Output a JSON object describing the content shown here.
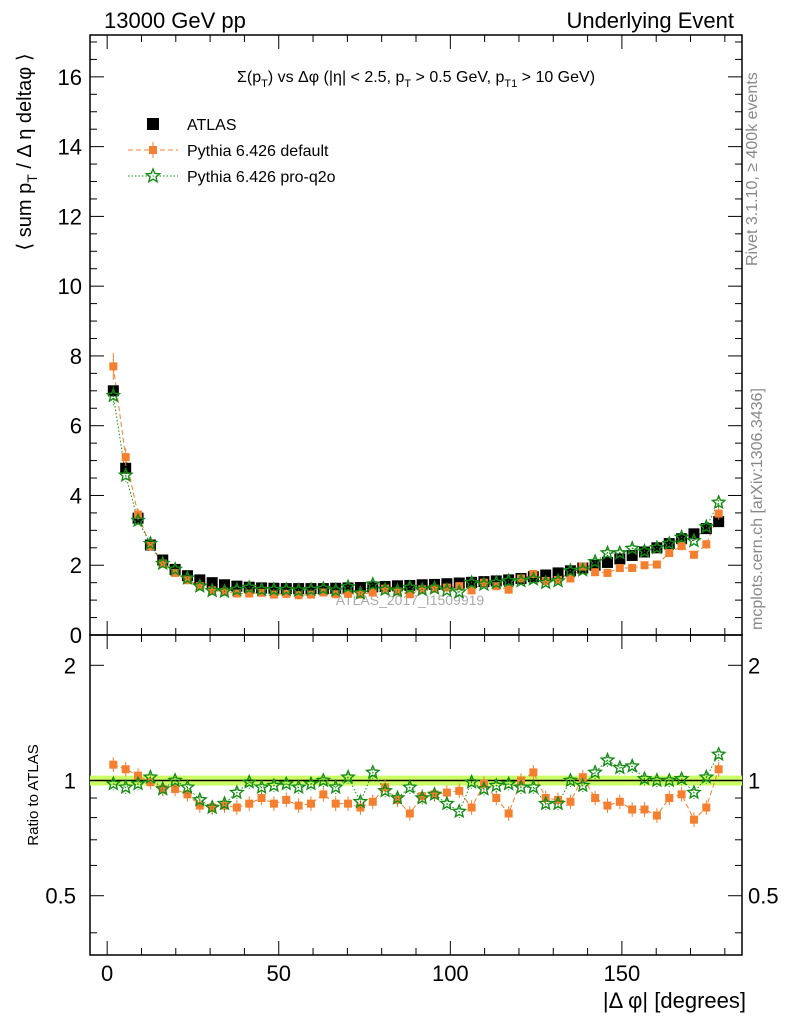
{
  "header": {
    "left": "13000 GeV pp",
    "right": "Underlying Event"
  },
  "side_labels": {
    "rivet": "Rivet 3.1.10, ≥ 400k events",
    "mcplots": "mcplots.cern.ch [arXiv:1306.3436]"
  },
  "watermark": "ATLAS_2017_I1509919",
  "plot_title": "Σ(pT) vs Δφ (|η| < 2.5, pT > 0.5 GeV, pT1 > 10 GeV)",
  "ylabel_main": "⟨ sum pT / Δ η deltaφ ⟩",
  "ylabel_ratio": "Ratio to ATLAS",
  "xlabel": "|Δ φ| [degrees]",
  "colors": {
    "atlas": "#000000",
    "default": "#f47f2f",
    "proq2o": "#158c15",
    "band": "#ccff66"
  },
  "chart_data": [
    {
      "type": "scatter",
      "title": "Σ(pT) vs Δφ (|η| < 2.5, pT > 0.5 GeV, pT1 > 10 GeV)",
      "xlabel": "|Δ φ| [degrees]",
      "ylabel": "⟨ sum pT / Δ η deltaφ ⟩",
      "xlim": [
        -5,
        185
      ],
      "ylim": [
        0,
        17.2
      ],
      "xticks": [
        0,
        50,
        100,
        150
      ],
      "yticks": [
        0,
        2,
        4,
        6,
        8,
        10,
        12,
        14,
        16
      ],
      "legend_position": "top-left",
      "x": [
        1.8,
        5.4,
        9.0,
        12.6,
        16.2,
        19.8,
        23.4,
        27.0,
        30.6,
        34.2,
        37.8,
        41.4,
        45.0,
        48.6,
        52.2,
        55.8,
        59.4,
        63.0,
        66.6,
        70.2,
        73.8,
        77.4,
        81.0,
        84.6,
        88.2,
        91.8,
        95.4,
        99.0,
        102.6,
        106.2,
        109.8,
        113.4,
        117.0,
        120.6,
        124.2,
        127.8,
        131.4,
        135.0,
        138.6,
        142.2,
        145.8,
        149.4,
        153.0,
        156.6,
        160.2,
        163.8,
        167.4,
        171.0,
        174.6,
        178.2
      ],
      "series": [
        {
          "name": "ATLAS",
          "marker": "square",
          "values": [
            7.0,
            4.78,
            3.35,
            2.58,
            2.15,
            1.88,
            1.7,
            1.58,
            1.5,
            1.44,
            1.4,
            1.37,
            1.35,
            1.34,
            1.33,
            1.33,
            1.33,
            1.33,
            1.34,
            1.35,
            1.36,
            1.38,
            1.39,
            1.41,
            1.42,
            1.44,
            1.45,
            1.47,
            1.49,
            1.51,
            1.53,
            1.55,
            1.58,
            1.62,
            1.67,
            1.72,
            1.78,
            1.84,
            1.92,
            2.0,
            2.08,
            2.18,
            2.28,
            2.38,
            2.5,
            2.62,
            2.76,
            2.9,
            3.05,
            3.25
          ]
        },
        {
          "name": "Pythia 6.426 default",
          "marker": "square",
          "values": [
            7.7,
            5.1,
            3.45,
            2.55,
            2.05,
            1.78,
            1.57,
            1.4,
            1.28,
            1.24,
            1.19,
            1.19,
            1.21,
            1.16,
            1.18,
            1.14,
            1.16,
            1.22,
            1.17,
            1.18,
            1.16,
            1.22,
            1.33,
            1.25,
            1.17,
            1.31,
            1.33,
            1.36,
            1.4,
            1.28,
            1.5,
            1.4,
            1.3,
            1.62,
            1.75,
            1.55,
            1.58,
            1.62,
            1.96,
            1.8,
            1.78,
            1.92,
            1.92,
            2.0,
            2.02,
            2.35,
            2.55,
            2.3,
            2.6,
            3.48
          ]
        },
        {
          "name": "Pythia 6.426 pro-q2o",
          "marker": "star",
          "values": [
            6.86,
            4.58,
            3.28,
            2.62,
            2.05,
            1.88,
            1.63,
            1.4,
            1.27,
            1.25,
            1.3,
            1.36,
            1.3,
            1.3,
            1.3,
            1.28,
            1.3,
            1.33,
            1.28,
            1.38,
            1.2,
            1.45,
            1.3,
            1.27,
            1.36,
            1.3,
            1.34,
            1.28,
            1.23,
            1.5,
            1.45,
            1.5,
            1.55,
            1.55,
            1.6,
            1.5,
            1.55,
            1.84,
            1.86,
            2.1,
            2.35,
            2.35,
            2.48,
            2.4,
            2.5,
            2.62,
            2.8,
            2.7,
            3.1,
            3.8
          ]
        }
      ]
    },
    {
      "type": "scatter",
      "title": "",
      "xlabel": "|Δ φ| [degrees]",
      "ylabel": "Ratio to ATLAS",
      "xlim": [
        -5,
        185
      ],
      "ylim": [
        0.35,
        2.4
      ],
      "yscale": "log",
      "yticks": [
        0.5,
        1,
        2
      ],
      "reference_band": [
        0.97,
        1.03
      ],
      "series": [
        {
          "name": "Pythia 6.426 default",
          "marker": "square",
          "values": [
            1.1,
            1.07,
            1.03,
            0.99,
            0.95,
            0.95,
            0.92,
            0.86,
            0.85,
            0.86,
            0.85,
            0.87,
            0.9,
            0.87,
            0.89,
            0.86,
            0.87,
            0.92,
            0.87,
            0.87,
            0.85,
            0.88,
            0.96,
            0.89,
            0.82,
            0.91,
            0.92,
            0.93,
            0.94,
            0.85,
            0.98,
            0.9,
            0.82,
            1.0,
            1.05,
            0.9,
            0.89,
            0.88,
            1.02,
            0.9,
            0.86,
            0.88,
            0.84,
            0.84,
            0.81,
            0.9,
            0.92,
            0.79,
            0.85,
            1.07
          ]
        },
        {
          "name": "Pythia 6.426 pro-q2o",
          "marker": "star",
          "values": [
            0.98,
            0.96,
            0.98,
            1.02,
            0.95,
            1.0,
            0.96,
            0.89,
            0.85,
            0.87,
            0.93,
            0.99,
            0.96,
            0.97,
            0.98,
            0.96,
            0.98,
            1.0,
            0.96,
            1.02,
            0.88,
            1.05,
            0.94,
            0.9,
            0.96,
            0.9,
            0.92,
            0.87,
            0.83,
            0.99,
            0.95,
            0.97,
            0.98,
            0.96,
            0.96,
            0.87,
            0.87,
            1.0,
            0.97,
            1.05,
            1.13,
            1.08,
            1.09,
            1.01,
            1.0,
            1.0,
            1.01,
            0.93,
            1.02,
            1.17
          ]
        }
      ]
    }
  ]
}
